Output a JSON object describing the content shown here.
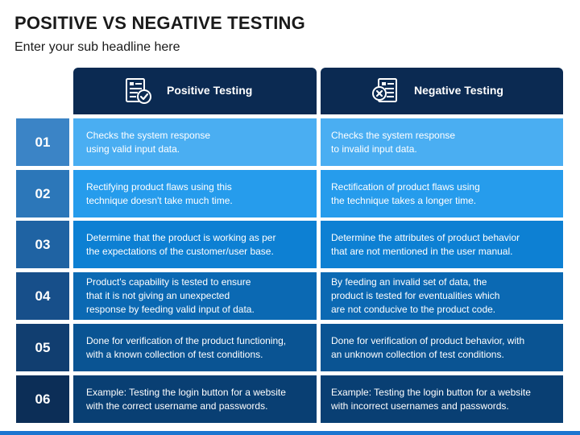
{
  "title": "POSITIVE VS NEGATIVE TESTING",
  "subtitle": "Enter your sub headline here",
  "columns": [
    {
      "label": "Positive Testing",
      "icon": "checklist-check-icon"
    },
    {
      "label": "Negative Testing",
      "icon": "checklist-cross-icon"
    }
  ],
  "rows": [
    {
      "num": "01",
      "positive": "Checks the system response\nusing valid input data.",
      "negative": "Checks the system response\nto invalid input data."
    },
    {
      "num": "02",
      "positive": "Rectifying product flaws using this\ntechnique doesn't take much time.",
      "negative": "Rectification of product flaws using\nthe technique takes a longer time."
    },
    {
      "num": "03",
      "positive": "Determine that the product is working as per\nthe expectations of the customer/user base.",
      "negative": "Determine the attributes of product behavior\nthat are not mentioned in the user manual."
    },
    {
      "num": "04",
      "positive": "Product's capability is tested to ensure\nthat it is not giving an unexpected\nresponse by feeding valid input of data.",
      "negative": "By feeding an invalid set of data, the\nproduct is tested for eventualities which\nare not conducive to the product code."
    },
    {
      "num": "05",
      "positive": "Done for verification of the product functioning,\nwith a known collection of test conditions.",
      "negative": "Done for verification of product behavior, with\nan unknown collection of test conditions."
    },
    {
      "num": "06",
      "positive": "Example: Testing the login button for a website\nwith the correct username and passwords.",
      "negative": "Example: Testing the login button for a website\nwith incorrect usernames and passwords."
    }
  ],
  "colors": {
    "header_bg": "#0b2a52",
    "bottom_bar": "#1b75d0"
  }
}
